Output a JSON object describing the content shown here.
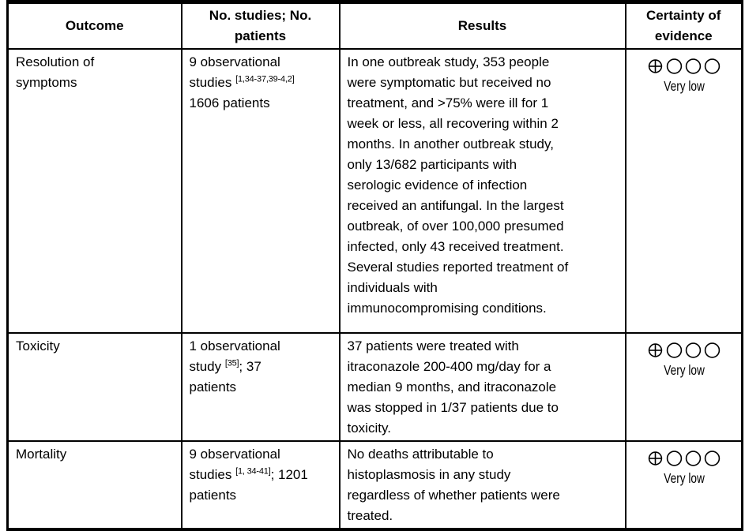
{
  "table": {
    "headers": {
      "outcome": "Outcome",
      "studies": "No. studies; No. patients",
      "results": "Results",
      "certainty": "Certainty of evidence"
    },
    "rows": [
      {
        "outcome": "Resolution of\nsymptoms",
        "studies": {
          "line1": "9 observational",
          "line2_pre": "studies ",
          "ref": "[1,34-37,39-4,2]",
          "line2_post": "",
          "line3": "1606 patients"
        },
        "results": "In one outbreak study, 353 people\nwere symptomatic but received no\ntreatment, and >75% were ill for 1\nweek or less, all recovering within 2\nmonths. In another outbreak study,\nonly 13/682 participants with\nserologic evidence of infection\nreceived an antifungal. In the largest\noutbreak, of over 100,000 presumed\ninfected, only 43 received treatment.\nSeveral studies reported treatment of\nindividuals with\nimmunocompromising conditions.",
        "certainty": {
          "filled": 1,
          "empty": 3,
          "label": "Very low"
        }
      },
      {
        "outcome": "Toxicity",
        "studies": {
          "line1": "1 observational",
          "line2_pre": "study ",
          "ref": "[35]",
          "line2_post": "; 37",
          "line3": "patients"
        },
        "results": "37 patients were treated with\nitraconazole 200-400 mg/day for a\nmedian 9 months, and itraconazole\nwas stopped in 1/37 patients due to\ntoxicity.",
        "certainty": {
          "filled": 1,
          "empty": 3,
          "label": "Very low"
        }
      },
      {
        "outcome": "Mortality",
        "studies": {
          "line1": "9 observational",
          "line2_pre": "studies ",
          "ref": "[1, 34-41]",
          "line2_post": "; 1201",
          "line3": "patients"
        },
        "results": "No deaths attributable to\nhistoplasmosis in any study\nregardless of whether patients were\ntreated.",
        "certainty": {
          "filled": 1,
          "empty": 3,
          "label": "Very low"
        }
      }
    ]
  }
}
